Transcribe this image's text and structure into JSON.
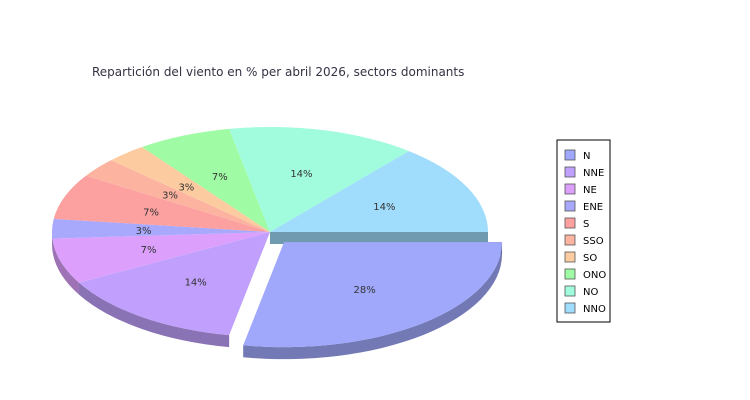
{
  "chart_data": {
    "type": "pie",
    "style": "3d-exploded",
    "title": "Repartición del viento en % per abril 2026, sectors dominants",
    "legend_placement": "right",
    "slices": [
      {
        "name": "N",
        "value": 28,
        "label": "28%",
        "color": "#a0a8fc",
        "exploded": true
      },
      {
        "name": "NNE",
        "value": 14,
        "label": "14%",
        "color": "#c0a0fc"
      },
      {
        "name": "NE",
        "value": 7,
        "label": "7%",
        "color": "#dca0fc"
      },
      {
        "name": "ENE",
        "value": 3,
        "label": "3%",
        "color": "#a8a8fc"
      },
      {
        "name": "S",
        "value": 7,
        "label": "7%",
        "color": "#fca0a0"
      },
      {
        "name": "SSO",
        "value": 3,
        "label": "3%",
        "color": "#fcb4a0"
      },
      {
        "name": "SO",
        "value": 3,
        "label": "3%",
        "color": "#fccca0"
      },
      {
        "name": "ONO",
        "value": 7,
        "label": "7%",
        "color": "#a0fca4"
      },
      {
        "name": "NO",
        "value": 14,
        "label": "14%",
        "color": "#a0fcdc"
      },
      {
        "name": "NNO",
        "value": 14,
        "label": "14%",
        "color": "#a0dcfc"
      }
    ]
  }
}
